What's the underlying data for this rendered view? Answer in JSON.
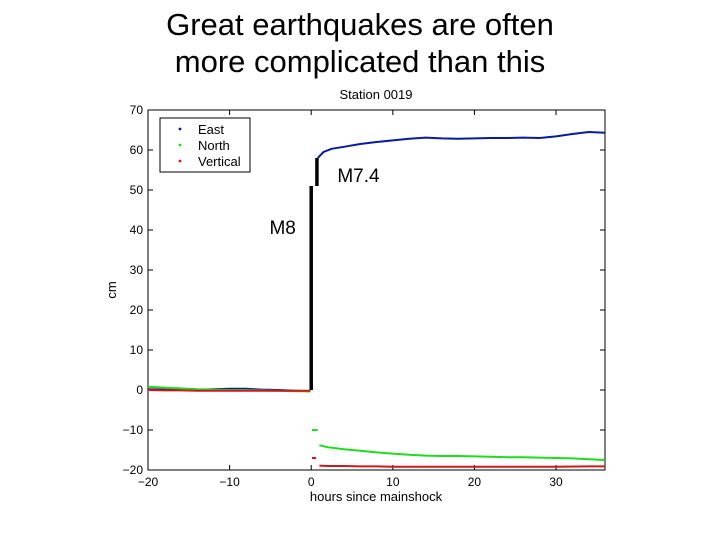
{
  "slide": {
    "title_line1": "Great earthquakes are often",
    "title_line2": "more complicated than this"
  },
  "chart_data": {
    "type": "line",
    "title": "Station 0019",
    "xlabel": "hours since mainshock",
    "ylabel": "cm",
    "xlim": [
      -20,
      36
    ],
    "ylim": [
      -20,
      70
    ],
    "xticks": [
      -20,
      -10,
      0,
      10,
      20,
      30
    ],
    "yticks": [
      -20,
      -10,
      0,
      10,
      20,
      30,
      40,
      50,
      60,
      70
    ],
    "grid": false,
    "legend_position": "top-left",
    "series": [
      {
        "name": "East",
        "color": "#0a1aa0",
        "points": [
          [
            -20,
            0.2
          ],
          [
            -18,
            0.1
          ],
          [
            -16,
            0.0
          ],
          [
            -14,
            0.1
          ],
          [
            -12,
            0.2
          ],
          [
            -10,
            0.3
          ],
          [
            -8,
            0.3
          ],
          [
            -6,
            0.1
          ],
          [
            -4,
            0.0
          ],
          [
            -2,
            -0.2
          ],
          [
            -0.1,
            -0.3
          ],
          [
            0.8,
            58.0
          ],
          [
            1.5,
            59.5
          ],
          [
            2.5,
            60.3
          ],
          [
            4,
            60.8
          ],
          [
            6,
            61.5
          ],
          [
            8,
            62.0
          ],
          [
            10,
            62.4
          ],
          [
            12,
            62.8
          ],
          [
            14,
            63.1
          ],
          [
            16,
            62.9
          ],
          [
            18,
            62.8
          ],
          [
            20,
            62.9
          ],
          [
            22,
            63.0
          ],
          [
            24,
            63.0
          ],
          [
            26,
            63.1
          ],
          [
            28,
            63.0
          ],
          [
            30,
            63.4
          ],
          [
            32,
            64.0
          ],
          [
            34,
            64.5
          ],
          [
            36,
            64.3
          ]
        ]
      },
      {
        "name": "North",
        "color": "#1edc1e",
        "points": [
          [
            -20,
            0.8
          ],
          [
            -18,
            0.6
          ],
          [
            -16,
            0.4
          ],
          [
            -14,
            0.2
          ],
          [
            -12,
            0.1
          ],
          [
            -10,
            0.0
          ],
          [
            -8,
            0.0
          ],
          [
            -6,
            -0.1
          ],
          [
            -4,
            -0.2
          ],
          [
            -2,
            -0.3
          ],
          [
            -0.1,
            -0.3
          ],
          [
            1.0,
            -13.8
          ],
          [
            2.0,
            -14.3
          ],
          [
            4,
            -14.8
          ],
          [
            6,
            -15.2
          ],
          [
            8,
            -15.6
          ],
          [
            10,
            -15.9
          ],
          [
            12,
            -16.2
          ],
          [
            14,
            -16.4
          ],
          [
            16,
            -16.5
          ],
          [
            18,
            -16.5
          ],
          [
            20,
            -16.6
          ],
          [
            22,
            -16.7
          ],
          [
            24,
            -16.8
          ],
          [
            26,
            -16.8
          ],
          [
            28,
            -16.9
          ],
          [
            30,
            -17.0
          ],
          [
            32,
            -17.1
          ],
          [
            34,
            -17.3
          ],
          [
            36,
            -17.5
          ]
        ],
        "extra_segment": [
          [
            0.1,
            -10.0
          ],
          [
            0.8,
            -10.0
          ]
        ]
      },
      {
        "name": "Vertical",
        "color": "#d01818",
        "points": [
          [
            -20,
            0.0
          ],
          [
            -18,
            -0.1
          ],
          [
            -16,
            -0.1
          ],
          [
            -14,
            -0.2
          ],
          [
            -12,
            -0.2
          ],
          [
            -10,
            -0.2
          ],
          [
            -8,
            -0.2
          ],
          [
            -6,
            -0.2
          ],
          [
            -4,
            -0.2
          ],
          [
            -2,
            -0.2
          ],
          [
            -0.1,
            -0.2
          ],
          [
            1.0,
            -18.9
          ],
          [
            2.0,
            -19.0
          ],
          [
            4,
            -19.0
          ],
          [
            6,
            -19.1
          ],
          [
            8,
            -19.1
          ],
          [
            10,
            -19.2
          ],
          [
            14,
            -19.2
          ],
          [
            18,
            -19.2
          ],
          [
            22,
            -19.2
          ],
          [
            26,
            -19.2
          ],
          [
            30,
            -19.2
          ],
          [
            34,
            -19.1
          ],
          [
            36,
            -19.1
          ]
        ],
        "extra_segment": [
          [
            0.1,
            -17.0
          ],
          [
            0.6,
            -17.0
          ]
        ]
      }
    ],
    "offset_bars": [
      {
        "x": 0.0,
        "y_from": 0.0,
        "y_to": 51.0
      },
      {
        "x": 0.7,
        "y_from": 51.0,
        "y_to": 58.0
      }
    ],
    "annotations": [
      {
        "text": "M8",
        "x": -3.5,
        "y": 39.0
      },
      {
        "text": "M7.4",
        "x": 3.2,
        "y": 52.0
      }
    ]
  }
}
